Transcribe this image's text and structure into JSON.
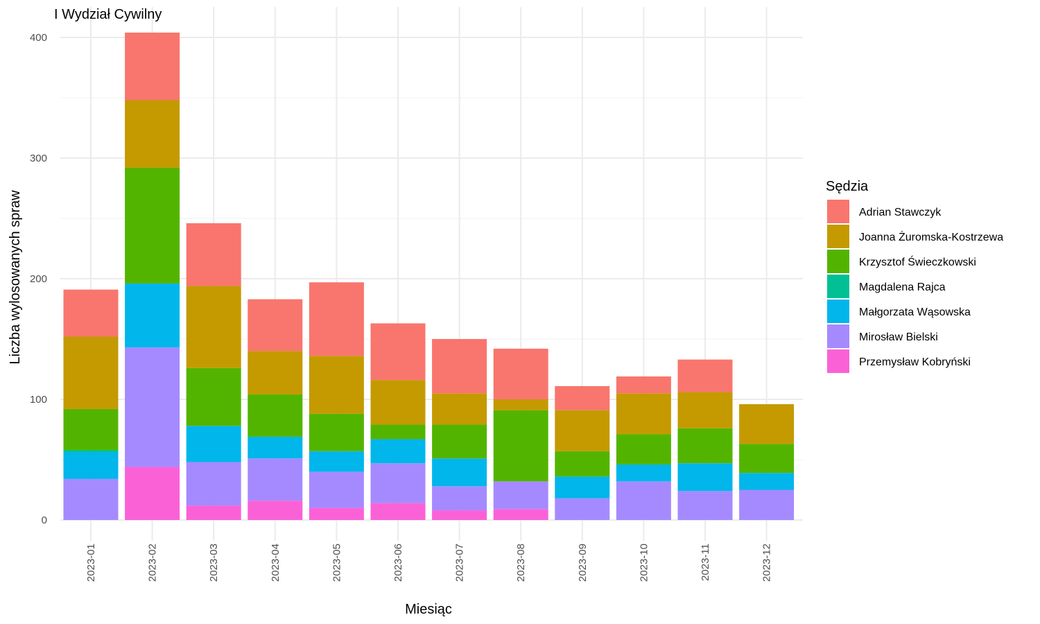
{
  "chart_data": {
    "type": "bar",
    "stacked": true,
    "title": "I Wydział Cywilny",
    "xlabel": "Miesiąc",
    "ylabel": "Liczba wylosowanych spraw",
    "ylim": [
      0,
      420
    ],
    "yticks": [
      0,
      100,
      200,
      300,
      400
    ],
    "grid": true,
    "legend_title": "Sędzia",
    "legend_position": "right",
    "categories": [
      "2023-01",
      "2023-02",
      "2023-03",
      "2023-04",
      "2023-05",
      "2023-06",
      "2023-07",
      "2023-08",
      "2023-09",
      "2023-10",
      "2023-11",
      "2023-12"
    ],
    "series": [
      {
        "name": "Adrian Stawczyk",
        "color": "#F8766D",
        "values": [
          39,
          56,
          52,
          43,
          61,
          47,
          45,
          42,
          20,
          14,
          27,
          0
        ]
      },
      {
        "name": "Joanna Żuromska-Kostrzewa",
        "color": "#C49A00",
        "values": [
          60,
          56,
          68,
          36,
          48,
          37,
          26,
          9,
          34,
          34,
          30,
          33
        ]
      },
      {
        "name": "Krzysztof Świeczkowski",
        "color": "#53B400",
        "values": [
          34,
          96,
          48,
          35,
          31,
          12,
          28,
          59,
          21,
          25,
          29,
          24
        ]
      },
      {
        "name": "Magdalena Rajca",
        "color": "#00C094",
        "values": [
          2,
          0,
          0,
          0,
          0,
          0,
          0,
          0,
          0,
          0,
          0,
          0
        ]
      },
      {
        "name": "Małgorzata Wąsowska",
        "color": "#00B6EB",
        "values": [
          22,
          53,
          30,
          18,
          17,
          20,
          23,
          0,
          18,
          14,
          23,
          14
        ]
      },
      {
        "name": "Mirosław Bielski",
        "color": "#A58AFF",
        "values": [
          34,
          99,
          36,
          35,
          30,
          33,
          20,
          23,
          18,
          32,
          24,
          25
        ]
      },
      {
        "name": "Przemysław Kobryński",
        "color": "#FB61D7",
        "values": [
          0,
          44,
          12,
          16,
          10,
          14,
          8,
          9,
          0,
          0,
          0,
          0
        ]
      }
    ]
  }
}
